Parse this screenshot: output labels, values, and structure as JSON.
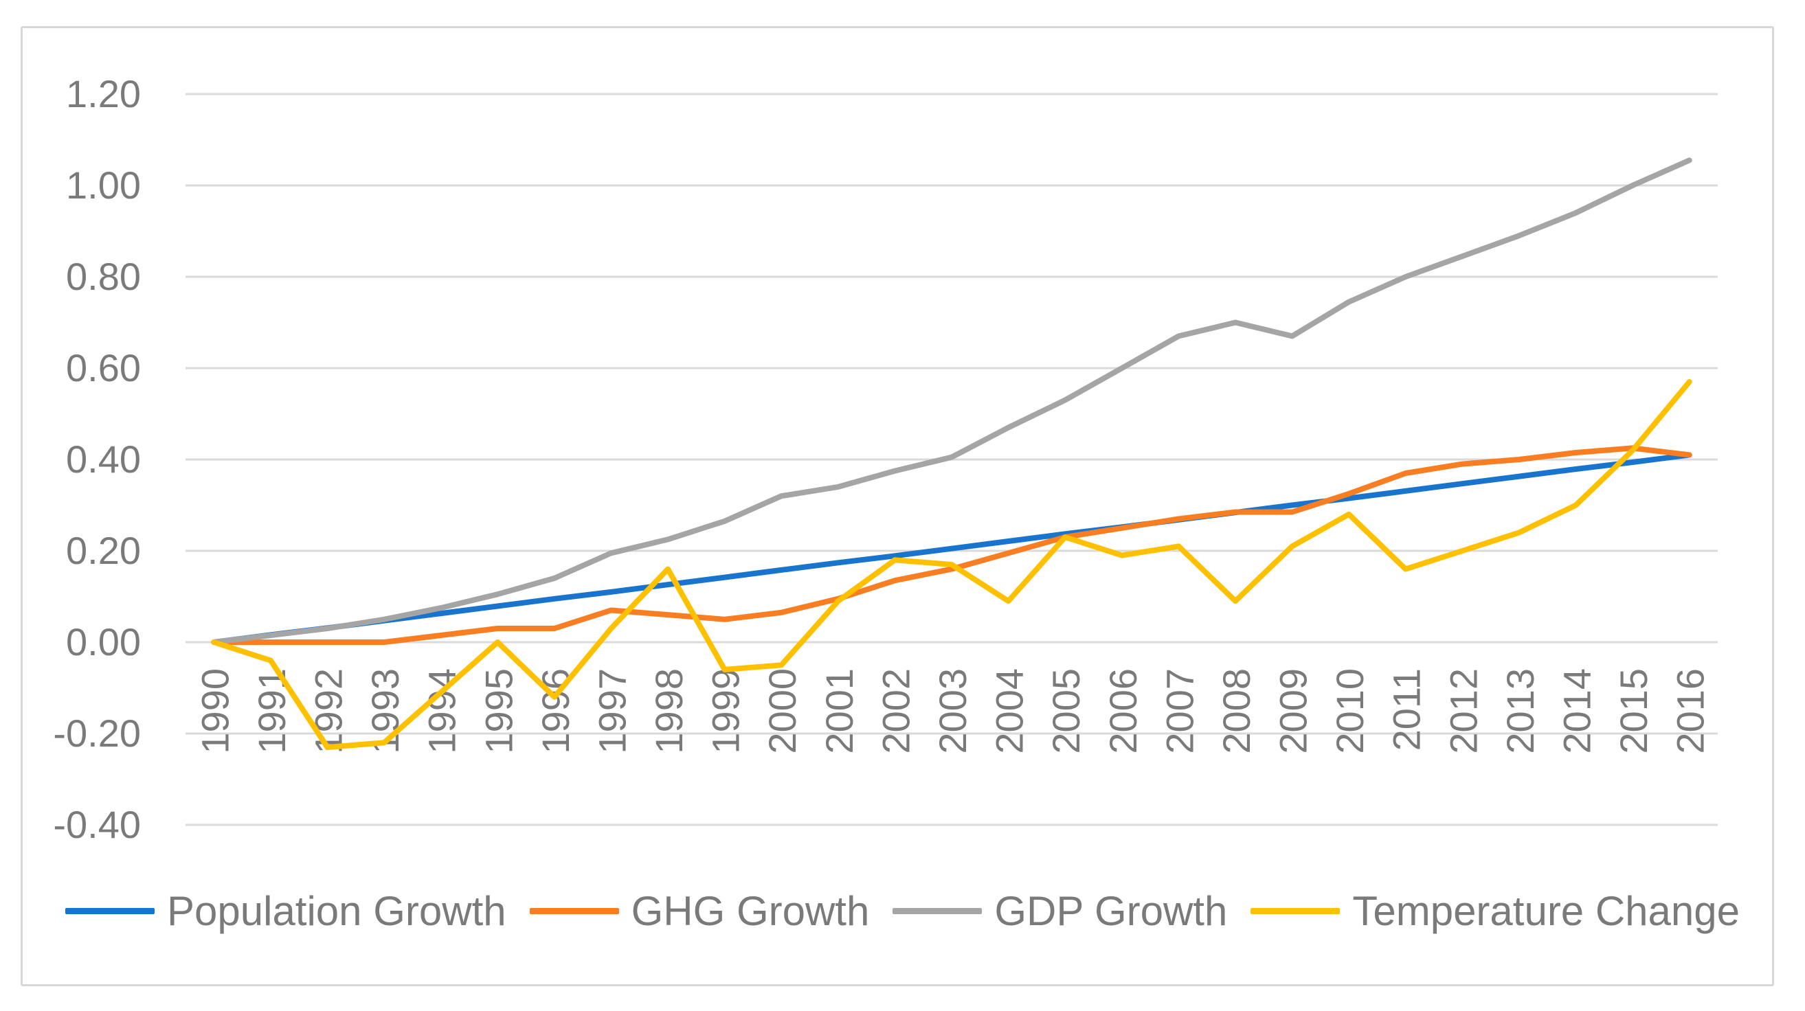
{
  "chart_data": {
    "type": "line",
    "categories": [
      "1990",
      "1991",
      "1992",
      "1993",
      "1994",
      "1995",
      "1996",
      "1997",
      "1998",
      "1999",
      "2000",
      "2001",
      "2002",
      "2003",
      "2004",
      "2005",
      "2006",
      "2007",
      "2008",
      "2009",
      "2010",
      "2011",
      "2012",
      "2013",
      "2014",
      "2015",
      "2016"
    ],
    "series": [
      {
        "name": "Population Growth",
        "color": "#1874CD",
        "values": [
          0.0,
          0.016,
          0.031,
          0.047,
          0.063,
          0.079,
          0.095,
          0.11,
          0.126,
          0.142,
          0.158,
          0.174,
          0.189,
          0.205,
          0.221,
          0.237,
          0.252,
          0.268,
          0.284,
          0.3,
          0.315,
          0.331,
          0.347,
          0.363,
          0.379,
          0.394,
          0.41
        ]
      },
      {
        "name": "GHG Growth",
        "color": "#F97D21",
        "values": [
          0.0,
          0.0,
          0.0,
          0.0,
          0.015,
          0.03,
          0.03,
          0.07,
          0.06,
          0.05,
          0.065,
          0.095,
          0.135,
          0.16,
          0.195,
          0.23,
          0.25,
          0.27,
          0.285,
          0.285,
          0.325,
          0.37,
          0.39,
          0.4,
          0.415,
          0.425,
          0.41
        ]
      },
      {
        "name": "GDP Growth",
        "color": "#A5A5A5",
        "values": [
          0.0,
          0.015,
          0.03,
          0.05,
          0.075,
          0.105,
          0.14,
          0.195,
          0.225,
          0.265,
          0.32,
          0.34,
          0.375,
          0.405,
          0.47,
          0.53,
          0.6,
          0.67,
          0.7,
          0.67,
          0.745,
          0.8,
          0.845,
          0.89,
          0.94,
          1.0,
          1.055
        ]
      },
      {
        "name": "Temperature Change",
        "color": "#FFC000",
        "values": [
          0.0,
          -0.04,
          -0.23,
          -0.22,
          -0.11,
          0.0,
          -0.12,
          0.03,
          0.16,
          -0.06,
          -0.05,
          0.09,
          0.18,
          0.17,
          0.09,
          0.23,
          0.19,
          0.21,
          0.09,
          0.21,
          0.28,
          0.16,
          0.2,
          0.24,
          0.3,
          0.42,
          0.57
        ]
      }
    ],
    "title": "",
    "xlabel": "",
    "ylabel": "",
    "ylim": [
      -0.4,
      1.2
    ],
    "ytick_step": 0.2,
    "ytick_labels": [
      "1.20",
      "1.00",
      "0.80",
      "0.60",
      "0.40",
      "0.20",
      "0.00",
      "-0.20",
      "-0.40"
    ],
    "x_label_rotation": -90,
    "grid": true,
    "legend_position": "bottom"
  },
  "styles": {
    "grid_color": "#DADADA",
    "axis_text_color": "#7A7A7A",
    "frame_border_color": "#D7D7D7",
    "background_color": "#FFFFFF"
  }
}
